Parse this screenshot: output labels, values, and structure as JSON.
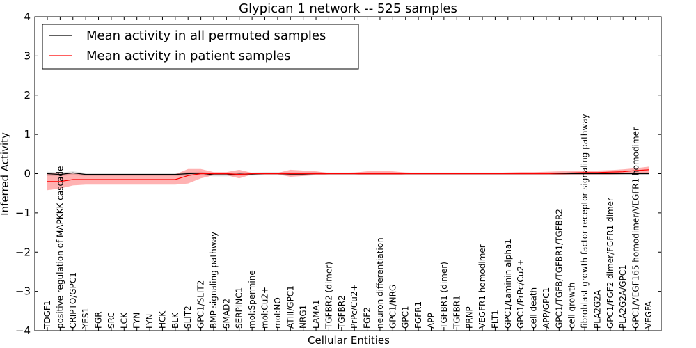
{
  "chart_data": {
    "type": "line",
    "title": "Glypican 1 network -- 525 samples",
    "xlabel": "Cellular Entities",
    "ylabel": "Inferred Activity",
    "ylim": [
      -4,
      4
    ],
    "yticks": [
      "−4",
      "−3",
      "−2",
      "−1",
      "0",
      "1",
      "2",
      "3",
      "4"
    ],
    "ytick_values": [
      -4,
      -3,
      -2,
      -1,
      0,
      1,
      2,
      3,
      4
    ],
    "legend_position": "top-left",
    "categories": [
      "TDGF1",
      "positive regulation of MAPKKK cascade",
      "CRIPTO/GPC1",
      "YES1",
      "FGR",
      "SRC",
      "LCK",
      "FYN",
      "LYN",
      "HCK",
      "BLK",
      "SLIT2",
      "GPC1/SLIT2",
      "BMP signaling pathway",
      "SMAD2",
      "SERPINC1",
      "mol:Spermine",
      "mol:Cu2+",
      "mol:NO",
      "ATIII/GPC1",
      "NRG1",
      "LAMA1",
      "TGFBR2 (dimer)",
      "TGFBR2",
      "PrPc/Cu2+",
      "FGF2",
      "neuron differentiation",
      "GPC1/NRG",
      "GPC1",
      "FGFR1",
      "APP",
      "TGFBR1 (dimer)",
      "TGFBR1",
      "PRNP",
      "VEGFR1 homodimer",
      "FLT1",
      "GPC1/Laminin alpha1",
      "GPC1/PrPc/Cu2+",
      "cell death",
      "APP/GPC1",
      "GPC1/TGFB/TGFBR1/TGFBR2",
      "cell growth",
      "fibroblast growth factor receptor signaling pathway",
      "PLA2G2A",
      "GPC1/FGF2 dimer/FGFR1 dimer",
      "PLA2G2A/GPC1",
      "GPC1/VEGF165 homodimer/VEGFR1 homodimer",
      "VEGFA"
    ],
    "series": [
      {
        "name": "Mean activity in all permuted samples",
        "color": "#000000",
        "values": [
          0.0,
          -0.02,
          0.02,
          -0.02,
          -0.02,
          -0.02,
          -0.02,
          -0.02,
          -0.02,
          -0.02,
          -0.02,
          0.0,
          0.01,
          -0.03,
          -0.03,
          -0.01,
          -0.01,
          0.0,
          0.0,
          -0.01,
          -0.01,
          0.0,
          0.0,
          0.0,
          0.0,
          0.0,
          0.0,
          0.0,
          0.0,
          0.0,
          0.0,
          0.0,
          0.0,
          0.0,
          0.0,
          0.0,
          0.0,
          0.0,
          0.0,
          0.0,
          0.0,
          0.0,
          0.0,
          0.0,
          0.0,
          0.0,
          0.0,
          0.0
        ],
        "lower": [
          -0.06,
          -0.06,
          -0.04,
          -0.06,
          -0.06,
          -0.06,
          -0.06,
          -0.06,
          -0.06,
          -0.06,
          -0.06,
          -0.05,
          -0.04,
          -0.07,
          -0.07,
          -0.05,
          -0.05,
          -0.04,
          -0.04,
          -0.05,
          -0.05,
          -0.04,
          -0.03,
          -0.03,
          -0.03,
          -0.03,
          -0.03,
          -0.03,
          -0.03,
          -0.03,
          -0.03,
          -0.03,
          -0.03,
          -0.03,
          -0.03,
          -0.03,
          -0.03,
          -0.03,
          -0.03,
          -0.03,
          -0.03,
          -0.03,
          -0.03,
          -0.03,
          -0.03,
          -0.03,
          -0.04,
          -0.04
        ],
        "upper": [
          0.05,
          0.03,
          0.06,
          0.02,
          0.02,
          0.02,
          0.02,
          0.02,
          0.02,
          0.02,
          0.02,
          0.04,
          0.05,
          0.01,
          0.01,
          0.03,
          0.03,
          0.04,
          0.04,
          0.03,
          0.03,
          0.04,
          0.03,
          0.03,
          0.03,
          0.03,
          0.03,
          0.03,
          0.03,
          0.03,
          0.03,
          0.03,
          0.03,
          0.03,
          0.03,
          0.03,
          0.03,
          0.03,
          0.03,
          0.03,
          0.03,
          0.03,
          0.03,
          0.03,
          0.03,
          0.03,
          0.04,
          0.04
        ]
      },
      {
        "name": "Mean activity in patient samples",
        "color": "#ff0000",
        "values": [
          -0.2,
          -0.2,
          -0.15,
          -0.15,
          -0.15,
          -0.15,
          -0.15,
          -0.15,
          -0.15,
          -0.15,
          -0.15,
          -0.05,
          0.0,
          0.0,
          0.0,
          -0.02,
          0.0,
          0.0,
          0.0,
          0.0,
          0.0,
          0.0,
          0.0,
          0.0,
          0.0,
          0.0,
          0.0,
          0.0,
          0.0,
          0.0,
          0.0,
          0.0,
          0.0,
          0.0,
          0.0,
          0.0,
          0.0,
          0.0,
          0.0,
          0.0,
          0.01,
          0.02,
          0.03,
          0.03,
          0.04,
          0.05,
          0.08,
          0.1
        ],
        "lower": [
          -0.42,
          -0.38,
          -0.3,
          -0.28,
          -0.28,
          -0.28,
          -0.28,
          -0.28,
          -0.28,
          -0.28,
          -0.28,
          -0.25,
          -0.12,
          -0.04,
          -0.04,
          -0.12,
          -0.02,
          -0.02,
          -0.02,
          -0.08,
          -0.06,
          -0.04,
          -0.02,
          -0.02,
          -0.02,
          -0.04,
          -0.04,
          -0.04,
          -0.02,
          -0.02,
          -0.02,
          -0.02,
          -0.02,
          -0.02,
          -0.02,
          -0.02,
          -0.02,
          -0.02,
          -0.02,
          -0.02,
          -0.03,
          -0.02,
          -0.02,
          -0.02,
          -0.02,
          -0.01,
          0.0,
          0.02
        ],
        "upper": [
          0.02,
          0.0,
          0.0,
          -0.02,
          -0.02,
          -0.02,
          -0.02,
          -0.02,
          -0.02,
          -0.02,
          -0.02,
          0.12,
          0.12,
          0.04,
          0.04,
          0.1,
          0.02,
          0.02,
          0.02,
          0.1,
          0.08,
          0.06,
          0.02,
          0.02,
          0.03,
          0.06,
          0.07,
          0.06,
          0.03,
          0.02,
          0.02,
          0.02,
          0.02,
          0.02,
          0.02,
          0.02,
          0.03,
          0.04,
          0.04,
          0.05,
          0.06,
          0.07,
          0.08,
          0.08,
          0.09,
          0.11,
          0.14,
          0.18
        ]
      }
    ]
  }
}
